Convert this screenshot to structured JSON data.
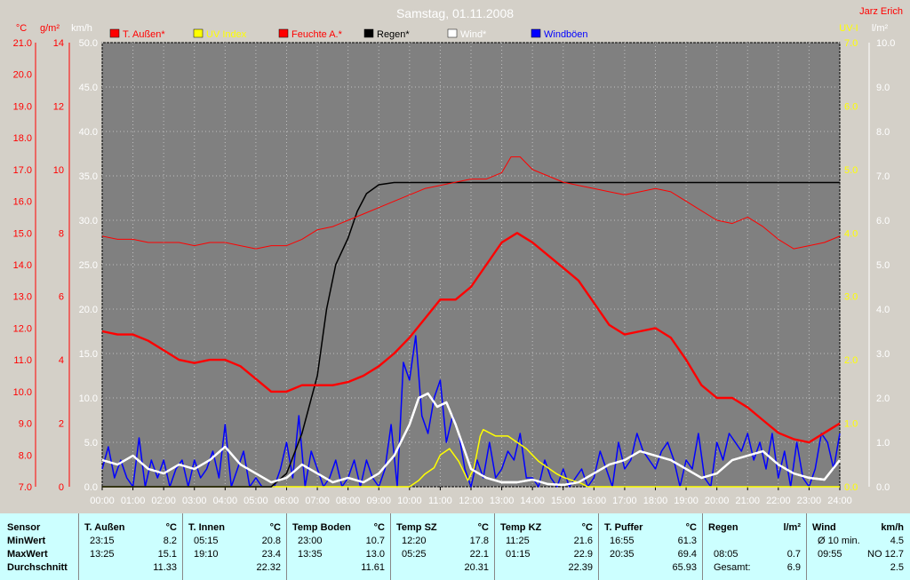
{
  "chart_data": {
    "type": "line",
    "title": "Samstag, 01.11.2008",
    "author": "Jarz Erich",
    "x_ticks": [
      "00:00",
      "01:00",
      "02:00",
      "03:00",
      "04:00",
      "05:00",
      "06:00",
      "07:00",
      "08:00",
      "09:00",
      "10:00",
      "11:00",
      "12:00",
      "13:00",
      "14:00",
      "15:00",
      "16:00",
      "17:00",
      "18:00",
      "19:00",
      "20:00",
      "21:00",
      "22:00",
      "23:00",
      "24:00"
    ],
    "grid": true,
    "legend_position": "top",
    "axes": {
      "temp": {
        "label": "°C",
        "color": "#ff0000",
        "range": [
          7.0,
          21.0
        ],
        "ticks": [
          "7.0",
          "8.0",
          "9.0",
          "10.0",
          "11.0",
          "12.0",
          "13.0",
          "14.0",
          "15.0",
          "16.0",
          "17.0",
          "18.0",
          "19.0",
          "20.0",
          "21.0"
        ]
      },
      "humidity": {
        "label": "g/m²",
        "color": "#ff0000",
        "range": [
          0,
          14
        ],
        "ticks": [
          "0",
          "2",
          "4",
          "6",
          "8",
          "10",
          "12",
          "14"
        ]
      },
      "wind": {
        "label": "km/h",
        "color": "#ffffff",
        "range": [
          0,
          50
        ],
        "ticks": [
          "0.0",
          "5.0",
          "10.0",
          "15.0",
          "20.0",
          "25.0",
          "30.0",
          "35.0",
          "40.0",
          "45.0",
          "50.0"
        ]
      },
      "uv": {
        "label": "UV-I",
        "color": "#ffff00",
        "range": [
          0,
          7
        ],
        "ticks": [
          "0.0",
          "1.0",
          "2.0",
          "3.0",
          "4.0",
          "5.0",
          "6.0",
          "7.0"
        ]
      },
      "rain": {
        "label": "l/m²",
        "color": "#ffffff",
        "range": [
          0,
          10
        ],
        "ticks": [
          "0.0",
          "1.0",
          "2.0",
          "3.0",
          "4.0",
          "5.0",
          "6.0",
          "7.0",
          "8.0",
          "9.0",
          "10.0"
        ]
      }
    },
    "series": [
      {
        "name": "T. Außen*",
        "color": "#ff0000",
        "axis": "temp",
        "width": 2.4,
        "x": [
          0,
          0.5,
          1,
          1.5,
          2,
          2.5,
          3,
          3.5,
          4,
          4.5,
          5,
          5.5,
          6,
          6.5,
          7,
          7.5,
          8,
          8.5,
          9,
          9.5,
          10,
          10.5,
          11,
          11.5,
          12,
          12.5,
          13,
          13.5,
          14,
          14.5,
          15,
          15.5,
          16,
          16.5,
          17,
          17.5,
          18,
          18.5,
          19,
          19.5,
          20,
          20.5,
          21,
          21.5,
          22,
          22.5,
          23,
          23.5,
          24
        ],
        "y": [
          11.9,
          11.8,
          11.8,
          11.6,
          11.3,
          11.0,
          10.9,
          11.0,
          11.0,
          10.8,
          10.4,
          10.0,
          10.0,
          10.2,
          10.2,
          10.2,
          10.3,
          10.5,
          10.8,
          11.2,
          11.7,
          12.3,
          12.9,
          12.9,
          13.3,
          14.0,
          14.7,
          15.0,
          14.7,
          14.3,
          13.9,
          13.5,
          12.8,
          12.1,
          11.8,
          11.9,
          12.0,
          11.7,
          11.0,
          10.2,
          9.8,
          9.8,
          9.5,
          9.1,
          8.7,
          8.5,
          8.4,
          8.7,
          9.0
        ]
      },
      {
        "name": "UV Index",
        "color": "#ffff00",
        "axis": "uv",
        "width": 1.5,
        "x": [
          0,
          9,
          9.6,
          10,
          10.3,
          10.5,
          10.8,
          11.0,
          11.3,
          11.6,
          11.8,
          11.9,
          12.1,
          12.3,
          12.4,
          12.6,
          12.8,
          13.2,
          13.5,
          13.8,
          14.0,
          14.2,
          14.5,
          14.8,
          15.0,
          15.3,
          15.6,
          15.8,
          16,
          24
        ],
        "y": [
          0,
          0,
          0,
          0,
          0.1,
          0.2,
          0.3,
          0.5,
          0.6,
          0.4,
          0.2,
          0.1,
          0.3,
          0.8,
          0.9,
          0.85,
          0.8,
          0.8,
          0.7,
          0.6,
          0.5,
          0.4,
          0.3,
          0.2,
          0.15,
          0.1,
          0.05,
          0,
          0,
          0
        ]
      },
      {
        "name": "Feuchte A.*",
        "color": "#ff0000",
        "axis": "humidity",
        "width": 1,
        "x": [
          0,
          0.5,
          1,
          1.5,
          2,
          2.5,
          3,
          3.5,
          4,
          4.5,
          5,
          5.5,
          6,
          6.5,
          7,
          7.5,
          8,
          8.5,
          9,
          9.5,
          10,
          10.5,
          11,
          11.5,
          12,
          12.5,
          13,
          13.3,
          13.6,
          14,
          14.5,
          15,
          15.5,
          16,
          16.5,
          17,
          17.5,
          18,
          18.5,
          19,
          19.5,
          20,
          20.5,
          21,
          21.5,
          22,
          22.5,
          23,
          23.5,
          24
        ],
        "y": [
          7.9,
          7.8,
          7.8,
          7.7,
          7.7,
          7.7,
          7.6,
          7.7,
          7.7,
          7.6,
          7.5,
          7.6,
          7.6,
          7.8,
          8.1,
          8.2,
          8.4,
          8.6,
          8.8,
          9.0,
          9.2,
          9.4,
          9.5,
          9.6,
          9.7,
          9.7,
          9.9,
          10.4,
          10.4,
          10.0,
          9.8,
          9.6,
          9.5,
          9.4,
          9.3,
          9.2,
          9.3,
          9.4,
          9.3,
          9.0,
          8.7,
          8.4,
          8.3,
          8.5,
          8.2,
          7.8,
          7.5,
          7.6,
          7.7,
          7.9
        ]
      },
      {
        "name": "Regen*",
        "color": "#000000",
        "axis": "rain",
        "width": 1.5,
        "x": [
          0,
          5,
          5.5,
          6,
          6.5,
          7,
          7.3,
          7.6,
          8,
          8.3,
          8.6,
          9,
          9.5,
          10,
          11,
          24
        ],
        "y": [
          0,
          0,
          0,
          0.3,
          1.2,
          2.5,
          4.0,
          5.0,
          5.6,
          6.2,
          6.6,
          6.8,
          6.85,
          6.85,
          6.85,
          6.85
        ]
      },
      {
        "name": "Wind*",
        "color": "#ffffff",
        "axis": "wind",
        "width": 2.4,
        "x": [
          0,
          0.5,
          1,
          1.5,
          2,
          2.5,
          3,
          3.5,
          4,
          4.5,
          5,
          5.5,
          6,
          6.5,
          7,
          7.5,
          8,
          8.5,
          9,
          9.5,
          10,
          10.3,
          10.6,
          10.9,
          11.2,
          11.5,
          11.8,
          12,
          12.5,
          13,
          13.5,
          14,
          14.5,
          15,
          15.5,
          16,
          16.5,
          17,
          17.5,
          18,
          18.5,
          19,
          19.5,
          20,
          20.5,
          21,
          21.5,
          22,
          22.5,
          23,
          23.5,
          24
        ],
        "y": [
          3.0,
          2.5,
          3.5,
          2.0,
          1.5,
          2.5,
          2.0,
          3.0,
          4.5,
          2.5,
          1.5,
          0.5,
          1.0,
          2.5,
          1.5,
          0.5,
          1.0,
          0.5,
          1.5,
          3.5,
          7.0,
          10.0,
          10.5,
          9.0,
          9.5,
          7.0,
          4.0,
          2.0,
          1.0,
          0.5,
          0.5,
          0.8,
          0.3,
          0.2,
          0.5,
          1.5,
          2.5,
          3.0,
          4.0,
          3.5,
          3.0,
          2.0,
          1.0,
          1.5,
          3.0,
          3.5,
          4.0,
          2.5,
          1.5,
          1.0,
          0.8,
          3.0
        ]
      },
      {
        "name": "Windböen",
        "color": "#0000ff",
        "axis": "wind",
        "width": 1.5,
        "x": [
          0,
          0.2,
          0.4,
          0.6,
          0.8,
          1.0,
          1.2,
          1.4,
          1.6,
          1.8,
          2.0,
          2.2,
          2.4,
          2.6,
          2.8,
          3.0,
          3.2,
          3.4,
          3.6,
          3.8,
          4.0,
          4.2,
          4.4,
          4.6,
          4.8,
          5.0,
          5.2,
          5.4,
          5.6,
          5.8,
          6.0,
          6.2,
          6.4,
          6.6,
          6.8,
          7.0,
          7.2,
          7.4,
          7.6,
          7.8,
          8.0,
          8.2,
          8.4,
          8.6,
          8.8,
          9.0,
          9.2,
          9.4,
          9.6,
          9.8,
          10.0,
          10.2,
          10.4,
          10.6,
          10.8,
          11.0,
          11.2,
          11.4,
          11.6,
          11.8,
          12.0,
          12.2,
          12.4,
          12.6,
          12.8,
          13.0,
          13.2,
          13.4,
          13.6,
          13.8,
          14.0,
          14.2,
          14.4,
          14.6,
          14.8,
          15.0,
          15.2,
          15.4,
          15.6,
          15.8,
          16.0,
          16.2,
          16.4,
          16.6,
          16.8,
          17.0,
          17.2,
          17.4,
          17.6,
          17.8,
          18.0,
          18.2,
          18.4,
          18.6,
          18.8,
          19.0,
          19.2,
          19.4,
          19.6,
          19.8,
          20.0,
          20.2,
          20.4,
          20.6,
          20.8,
          21.0,
          21.2,
          21.4,
          21.6,
          21.8,
          22.0,
          22.2,
          22.4,
          22.6,
          22.8,
          23.0,
          23.2,
          23.4,
          23.6,
          23.8,
          24.0
        ],
        "y": [
          2,
          4.5,
          1,
          3,
          1,
          0,
          5.5,
          0,
          3,
          1,
          3,
          0,
          2,
          3,
          0,
          3,
          1,
          2,
          4,
          1,
          7,
          0,
          2,
          4,
          0,
          1,
          0,
          0,
          0,
          2,
          5,
          1,
          8,
          0,
          4,
          2,
          0,
          1,
          3,
          0,
          1,
          3,
          0,
          3,
          1,
          0,
          2,
          7,
          0,
          14,
          12,
          17,
          8,
          6,
          10,
          12,
          5,
          8,
          6,
          2,
          0,
          3,
          1,
          5,
          1,
          2,
          4,
          3,
          6,
          1,
          1,
          0,
          3,
          1,
          0,
          2,
          0,
          1,
          2,
          0,
          1,
          4,
          2,
          0,
          5,
          2,
          3,
          6,
          4,
          3,
          2,
          4,
          5,
          3,
          0,
          3,
          2,
          6,
          1,
          0,
          5,
          3,
          6,
          5,
          4,
          6,
          3,
          5,
          2,
          6,
          1,
          4,
          0,
          5,
          1,
          0,
          2,
          6,
          5,
          2,
          6
        ]
      }
    ]
  },
  "stats": {
    "row_labels": {
      "sensor": "Sensor",
      "min": "MinWert",
      "max": "MaxWert",
      "avg": "Durchschnitt"
    },
    "columns": [
      {
        "name": "T. Außen",
        "unit": "°C",
        "min_time": "23:15",
        "min_val": "8.2",
        "max_time": "13:25",
        "max_val": "15.1",
        "avg_label": "",
        "avg": "11.33"
      },
      {
        "name": "T. Innen",
        "unit": "°C",
        "min_time": "05:15",
        "min_val": "20.8",
        "max_time": "19:10",
        "max_val": "23.4",
        "avg_label": "",
        "avg": "22.32"
      },
      {
        "name": "Temp Boden",
        "unit": "°C",
        "min_time": "23:00",
        "min_val": "10.7",
        "max_time": "13:35",
        "max_val": "13.0",
        "avg_label": "",
        "avg": "11.61"
      },
      {
        "name": "Temp SZ",
        "unit": "°C",
        "min_time": "12:20",
        "min_val": "17.8",
        "max_time": "05:25",
        "max_val": "22.1",
        "avg_label": "",
        "avg": "20.31"
      },
      {
        "name": "Temp KZ",
        "unit": "°C",
        "min_time": "11:25",
        "min_val": "21.6",
        "max_time": "01:15",
        "max_val": "22.9",
        "avg_label": "",
        "avg": "22.39"
      },
      {
        "name": "T. Puffer",
        "unit": "°C",
        "min_time": "16:55",
        "min_val": "61.3",
        "max_time": "20:35",
        "max_val": "69.4",
        "avg_label": "",
        "avg": "65.93"
      },
      {
        "name": "Regen",
        "unit": "l/m²",
        "min_time": "",
        "min_val": "",
        "max_time": "08:05",
        "max_val": "0.7",
        "avg_label": "Gesamt:",
        "avg": "6.9"
      },
      {
        "name": "Wind",
        "unit": "km/h",
        "min_time": "Ø 10 min.",
        "min_val": "4.5",
        "max_time": "09:55",
        "max_val": "NO 12.7",
        "avg_label": "",
        "avg": "2.5"
      }
    ]
  }
}
